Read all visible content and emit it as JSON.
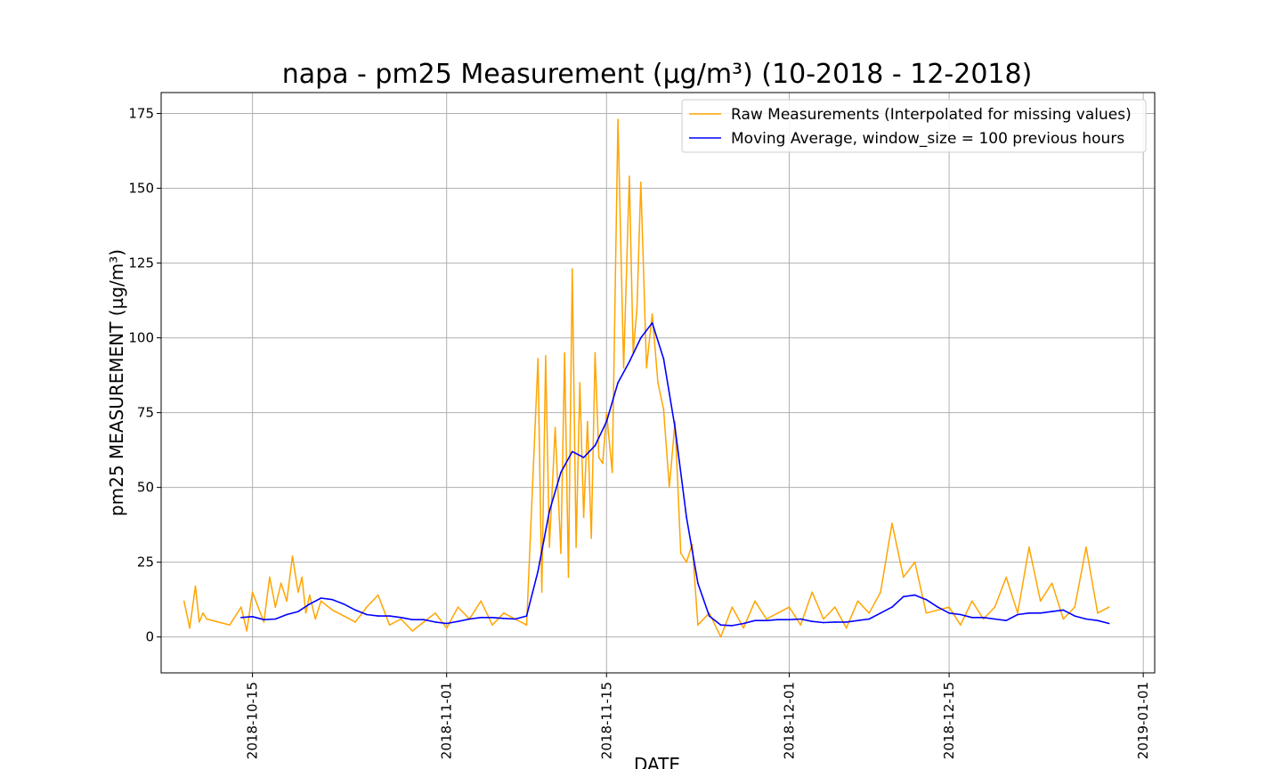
{
  "chart_data": {
    "type": "line",
    "title": "napa - pm25 Measurement (µg/m³) (10-2018 - 12-2018)",
    "xlabel": "DATE",
    "ylabel": "pm25 MEASUREMENT (µg/m³)",
    "xlim": [
      "2018-10-07",
      "2019-01-02"
    ],
    "ylim": [
      -12,
      182
    ],
    "x_ticks": [
      "2018-10-15",
      "2018-11-01",
      "2018-11-15",
      "2018-12-01",
      "2018-12-15",
      "2019-01-01"
    ],
    "y_ticks": [
      0,
      25,
      50,
      75,
      100,
      125,
      150,
      175
    ],
    "grid": true,
    "legend_position": "top-right",
    "series": [
      {
        "name": "Raw Measurements (Interpolated for missing values)",
        "color": "#ffa500",
        "x": [
          "2018-10-09",
          "2018-10-09",
          "2018-10-10",
          "2018-10-10",
          "2018-10-10",
          "2018-10-11",
          "2018-10-13",
          "2018-10-14",
          "2018-10-14",
          "2018-10-15",
          "2018-10-16",
          "2018-10-16",
          "2018-10-17",
          "2018-10-17",
          "2018-10-18",
          "2018-10-18",
          "2018-10-19",
          "2018-10-19",
          "2018-10-19",
          "2018-10-20",
          "2018-10-20",
          "2018-10-21",
          "2018-10-22",
          "2018-10-23",
          "2018-10-24",
          "2018-10-25",
          "2018-10-26",
          "2018-10-27",
          "2018-10-28",
          "2018-10-29",
          "2018-10-30",
          "2018-10-31",
          "2018-11-01",
          "2018-11-02",
          "2018-11-03",
          "2018-11-04",
          "2018-11-05",
          "2018-11-06",
          "2018-11-07",
          "2018-11-08",
          "2018-11-09",
          "2018-11-09",
          "2018-11-09",
          "2018-11-10",
          "2018-11-10",
          "2018-11-11",
          "2018-11-11",
          "2018-11-11",
          "2018-11-12",
          "2018-11-12",
          "2018-11-12",
          "2018-11-13",
          "2018-11-13",
          "2018-11-13",
          "2018-11-14",
          "2018-11-14",
          "2018-11-14",
          "2018-11-15",
          "2018-11-15",
          "2018-11-16",
          "2018-11-16",
          "2018-11-17",
          "2018-11-17",
          "2018-11-17",
          "2018-11-18",
          "2018-11-18",
          "2018-11-19",
          "2018-11-19",
          "2018-11-20",
          "2018-11-20",
          "2018-11-21",
          "2018-11-21",
          "2018-11-22",
          "2018-11-22",
          "2018-11-23",
          "2018-11-24",
          "2018-11-25",
          "2018-11-26",
          "2018-11-27",
          "2018-11-28",
          "2018-11-29",
          "2018-11-30",
          "2018-12-01",
          "2018-12-02",
          "2018-12-03",
          "2018-12-04",
          "2018-12-05",
          "2018-12-06",
          "2018-12-07",
          "2018-12-08",
          "2018-12-09",
          "2018-12-10",
          "2018-12-11",
          "2018-12-12",
          "2018-12-13",
          "2018-12-15",
          "2018-12-16",
          "2018-12-17",
          "2018-12-18",
          "2018-12-19",
          "2018-12-20",
          "2018-12-21",
          "2018-12-22",
          "2018-12-23",
          "2018-12-24",
          "2018-12-25",
          "2018-12-26",
          "2018-12-27",
          "2018-12-28",
          "2018-12-29"
        ],
        "y": [
          12,
          3,
          17,
          5,
          8,
          6,
          4,
          10,
          2,
          15,
          5,
          20,
          10,
          18,
          12,
          27,
          15,
          20,
          8,
          14,
          6,
          12,
          9,
          7,
          5,
          10,
          14,
          4,
          6,
          2,
          5,
          8,
          3,
          10,
          6,
          12,
          4,
          8,
          6,
          4,
          93,
          15,
          94,
          30,
          70,
          28,
          95,
          20,
          123,
          30,
          85,
          40,
          72,
          33,
          95,
          60,
          58,
          75,
          55,
          173,
          90,
          154,
          95,
          110,
          152,
          90,
          108,
          85,
          76,
          50,
          72,
          28,
          25,
          31,
          4,
          8,
          0,
          10,
          3,
          12,
          6,
          8,
          10,
          4,
          15,
          6,
          10,
          3,
          12,
          8,
          15,
          38,
          20,
          25,
          8,
          10,
          4,
          12,
          6,
          10,
          20,
          8,
          30,
          12,
          18,
          6,
          10,
          30,
          8,
          10
        ]
      },
      {
        "name": "Moving Average, window_size = 100 previous hours",
        "color": "#0000ff",
        "x": [
          "2018-10-14",
          "2018-10-15",
          "2018-10-16",
          "2018-10-17",
          "2018-10-18",
          "2018-10-19",
          "2018-10-20",
          "2018-10-21",
          "2018-10-22",
          "2018-10-23",
          "2018-10-24",
          "2018-10-25",
          "2018-10-26",
          "2018-10-27",
          "2018-10-28",
          "2018-10-29",
          "2018-10-30",
          "2018-10-31",
          "2018-11-01",
          "2018-11-02",
          "2018-11-03",
          "2018-11-04",
          "2018-11-05",
          "2018-11-06",
          "2018-11-07",
          "2018-11-08",
          "2018-11-09",
          "2018-11-10",
          "2018-11-11",
          "2018-11-12",
          "2018-11-13",
          "2018-11-14",
          "2018-11-15",
          "2018-11-16",
          "2018-11-17",
          "2018-11-18",
          "2018-11-19",
          "2018-11-20",
          "2018-11-21",
          "2018-11-22",
          "2018-11-23",
          "2018-11-24",
          "2018-11-25",
          "2018-11-26",
          "2018-11-27",
          "2018-11-28",
          "2018-11-29",
          "2018-11-30",
          "2018-12-01",
          "2018-12-02",
          "2018-12-03",
          "2018-12-04",
          "2018-12-05",
          "2018-12-06",
          "2018-12-07",
          "2018-12-08",
          "2018-12-09",
          "2018-12-10",
          "2018-12-11",
          "2018-12-12",
          "2018-12-13",
          "2018-12-14",
          "2018-12-15",
          "2018-12-16",
          "2018-12-17",
          "2018-12-18",
          "2018-12-19",
          "2018-12-20",
          "2018-12-21",
          "2018-12-22",
          "2018-12-23",
          "2018-12-24",
          "2018-12-25",
          "2018-12-26",
          "2018-12-27",
          "2018-12-28",
          "2018-12-29"
        ],
        "y": [
          6.5,
          6.8,
          5.8,
          6.0,
          7.5,
          8.5,
          11,
          13,
          12.5,
          11,
          9,
          7.5,
          7,
          7,
          6.5,
          5.8,
          5.8,
          5,
          4.5,
          5.2,
          6.0,
          6.5,
          6.5,
          6.2,
          6.0,
          7,
          22,
          42,
          55,
          62,
          60,
          64,
          72,
          85,
          92,
          100,
          105,
          93,
          70,
          40,
          18,
          7,
          4,
          3.8,
          4.5,
          5.5,
          5.5,
          5.8,
          5.8,
          6.0,
          5.2,
          4.8,
          5.0,
          5.0,
          5.5,
          6.0,
          8,
          10,
          13.5,
          14,
          12.5,
          10,
          8,
          7.5,
          6.5,
          6.5,
          6.0,
          5.5,
          7.5,
          8,
          8,
          8.5,
          9,
          7,
          6,
          5.5,
          4.5
        ]
      }
    ]
  }
}
